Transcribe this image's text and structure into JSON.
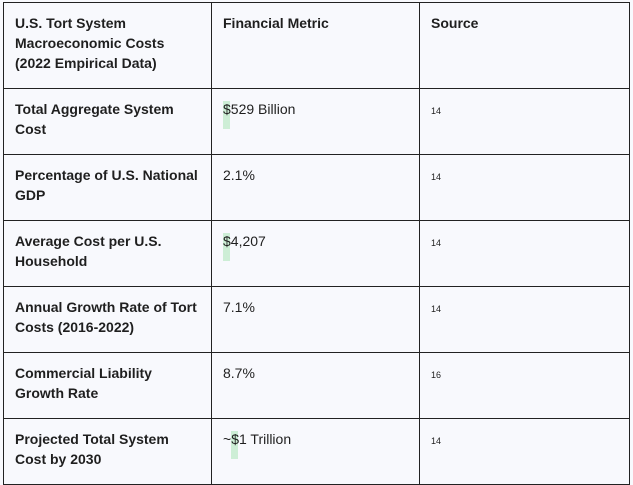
{
  "headers": [
    "U.S. Tort System Macroeconomic Costs (2022 Empirical Data)",
    "Financial Metric",
    "Source"
  ],
  "rows": [
    {
      "label": "Total Aggregate System Cost",
      "prefix": "",
      "hl": "$",
      "rest": "529 Billion",
      "source": "14"
    },
    {
      "label": "Percentage of U.S. National GDP",
      "prefix": "",
      "hl": "",
      "rest": "2.1%",
      "source": "14"
    },
    {
      "label": "Average Cost per U.S. Household",
      "prefix": "",
      "hl": "$",
      "rest": "4,207",
      "source": "14"
    },
    {
      "label": "Annual Growth Rate of Tort Costs (2016-2022)",
      "prefix": "",
      "hl": "",
      "rest": "7.1%",
      "source": "14"
    },
    {
      "label": "Commercial Liability Growth Rate",
      "prefix": "",
      "hl": "",
      "rest": "8.7%",
      "source": "16"
    },
    {
      "label": "Projected Total System Cost by 2030",
      "prefix": "~",
      "hl": "$",
      "rest": "1 Trillion",
      "source": "14"
    }
  ],
  "colors": {
    "background": "#f8f9fd",
    "highlight": "#cdeed6",
    "border": "#222222"
  }
}
